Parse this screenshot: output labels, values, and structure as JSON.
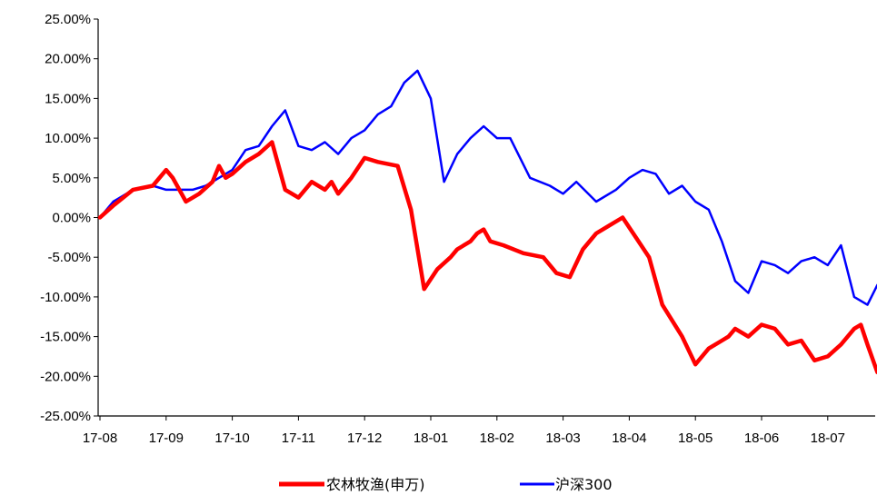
{
  "chart_data": {
    "type": "line",
    "title": "",
    "xlabel": "",
    "ylabel": "",
    "ylim": [
      -25,
      25
    ],
    "y_ticks": [
      "25.00%",
      "20.00%",
      "15.00%",
      "10.00%",
      "5.00%",
      "0.00%",
      "-5.00%",
      "-10.00%",
      "-15.00%",
      "-20.00%",
      "-25.00%"
    ],
    "x_ticks": [
      "17-08",
      "17-09",
      "17-10",
      "17-11",
      "17-12",
      "18-01",
      "18-02",
      "18-03",
      "18-04",
      "18-05",
      "18-06",
      "18-07"
    ],
    "grid": false,
    "legend_position": "bottom",
    "series": [
      {
        "name": "农林牧渔(申万)",
        "color": "#ff0000",
        "x": [
          0,
          0.2,
          0.5,
          0.8,
          1.0,
          1.1,
          1.3,
          1.5,
          1.7,
          1.8,
          1.9,
          2.0,
          2.2,
          2.4,
          2.6,
          2.8,
          3.0,
          3.2,
          3.4,
          3.5,
          3.6,
          3.8,
          4.0,
          4.2,
          4.5,
          4.7,
          4.9,
          5.1,
          5.3,
          5.4,
          5.5,
          5.6,
          5.7,
          5.8,
          5.9,
          6.1,
          6.4,
          6.7,
          6.9,
          7.1,
          7.3,
          7.5,
          7.7,
          7.9,
          8.1,
          8.3,
          8.5,
          8.8,
          9.0,
          9.2,
          9.4,
          9.5,
          9.6,
          9.8,
          10.0,
          10.2,
          10.4,
          10.6,
          10.8,
          11.0,
          11.2,
          11.4,
          11.5,
          11.6,
          11.75
        ],
        "values": [
          0,
          1.5,
          3.5,
          4.0,
          6.0,
          5.0,
          2.0,
          3.0,
          4.5,
          6.5,
          5.0,
          5.5,
          7.0,
          8.0,
          9.5,
          3.5,
          2.5,
          4.5,
          3.5,
          4.5,
          3.0,
          5.0,
          7.5,
          7.0,
          6.5,
          1.0,
          -9.0,
          -6.5,
          -5.0,
          -4.0,
          -3.5,
          -3.0,
          -2.0,
          -1.5,
          -3.0,
          -3.5,
          -4.5,
          -5.0,
          -7.0,
          -7.5,
          -4.0,
          -2.0,
          -1.0,
          0.0,
          -2.5,
          -5.0,
          -11.0,
          -15.0,
          -18.5,
          -16.5,
          -15.5,
          -15.0,
          -14.0,
          -15.0,
          -13.5,
          -14.0,
          -16.0,
          -15.5,
          -18.0,
          -17.5,
          -16.0,
          -14.0,
          -13.5,
          -16.0,
          -19.5
        ]
      },
      {
        "name": "沪深300",
        "color": "#0000ff",
        "x": [
          0,
          0.2,
          0.5,
          0.8,
          1.0,
          1.2,
          1.4,
          1.6,
          1.8,
          2.0,
          2.2,
          2.4,
          2.6,
          2.8,
          3.0,
          3.2,
          3.4,
          3.6,
          3.8,
          4.0,
          4.2,
          4.4,
          4.6,
          4.8,
          5.0,
          5.2,
          5.4,
          5.6,
          5.8,
          6.0,
          6.2,
          6.5,
          6.8,
          7.0,
          7.2,
          7.5,
          7.8,
          8.0,
          8.2,
          8.4,
          8.6,
          8.8,
          9.0,
          9.2,
          9.4,
          9.6,
          9.8,
          10.0,
          10.2,
          10.4,
          10.6,
          10.8,
          11.0,
          11.2,
          11.4,
          11.6,
          11.75
        ],
        "values": [
          0,
          2.0,
          3.5,
          4.0,
          3.5,
          3.5,
          3.5,
          4.0,
          5.0,
          6.0,
          8.5,
          9.0,
          11.5,
          13.5,
          9.0,
          8.5,
          9.5,
          8.0,
          10.0,
          11.0,
          13.0,
          14.0,
          17.0,
          18.5,
          15.0,
          4.5,
          8.0,
          10.0,
          11.5,
          10.0,
          10.0,
          5.0,
          4.0,
          3.0,
          4.5,
          2.0,
          3.5,
          5.0,
          6.0,
          5.5,
          3.0,
          4.0,
          2.0,
          1.0,
          -3.0,
          -8.0,
          -9.5,
          -5.5,
          -6.0,
          -7.0,
          -5.5,
          -5.0,
          -6.0,
          -3.5,
          -10.0,
          -11.0,
          -8.5
        ]
      }
    ]
  }
}
